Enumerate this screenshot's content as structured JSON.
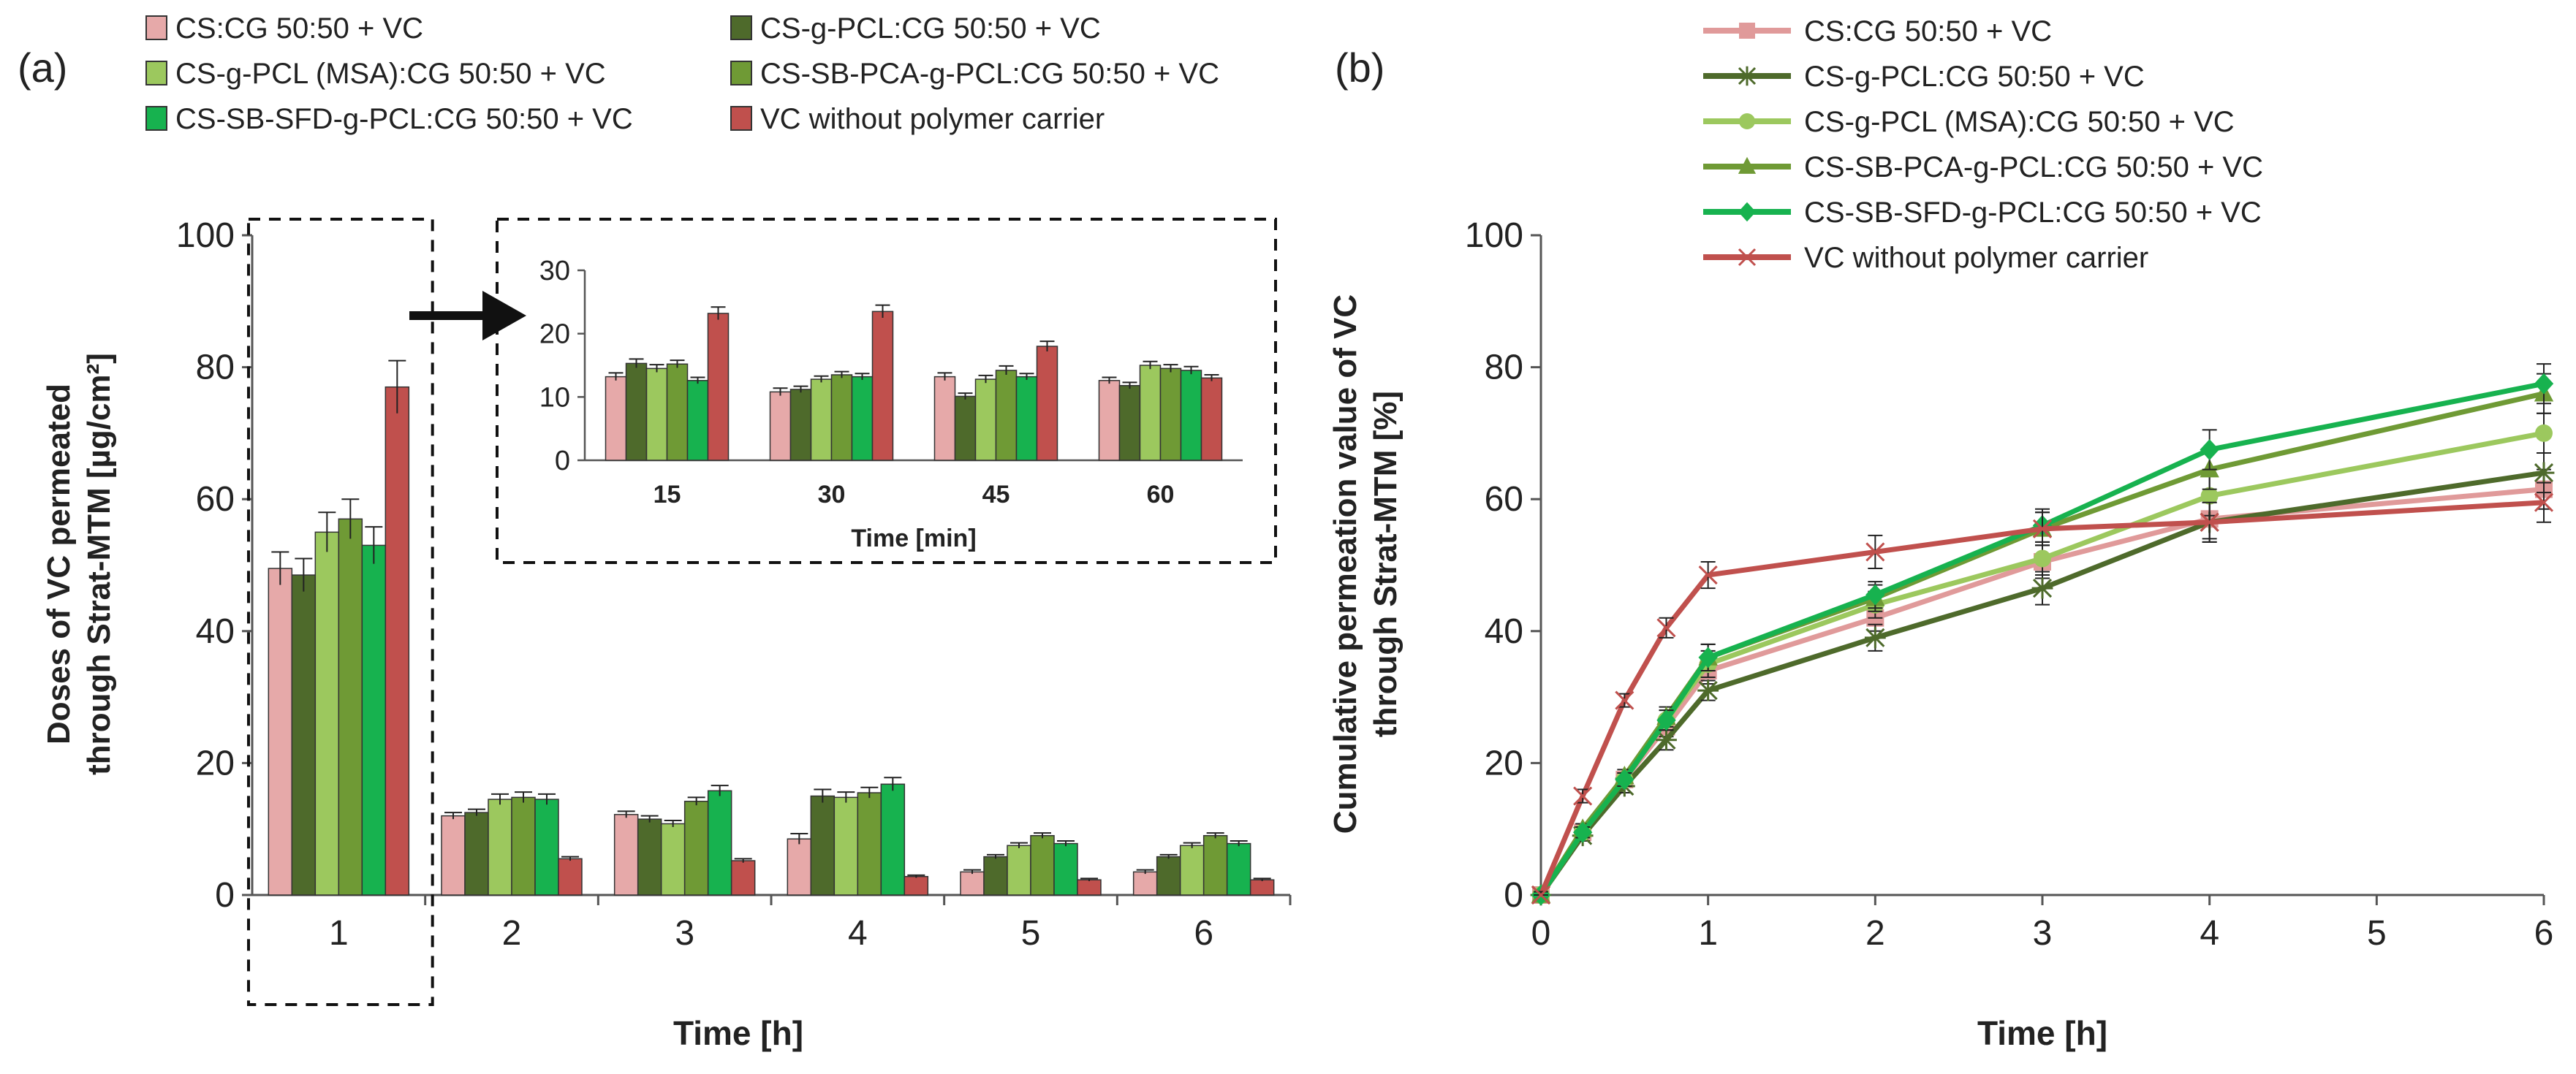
{
  "panel_labels": {
    "a": "(a)",
    "b": "(b)"
  },
  "colors": [
    "#e6a9a9",
    "#4e6a2b",
    "#9cc85e",
    "#6f9a35",
    "#17b24f",
    "#c0504d"
  ],
  "line_colors": [
    "#e09a9a",
    "#4e6a2b",
    "#9cc85e",
    "#6f9a35",
    "#17b24f",
    "#c0504d"
  ],
  "legend": [
    "CS:CG 50:50 + VC",
    "CS-g-PCL:CG 50:50 + VC",
    "CS-g-PCL (MSA):CG 50:50 + VC",
    "CS-SB-PCA-g-PCL:CG 50:50 + VC",
    "CS-SB-SFD-g-PCL:CG 50:50 + VC",
    "VC without polymer carrier"
  ],
  "chart_data": [
    {
      "id": "a",
      "type": "bar",
      "title": "",
      "xlabel": "Time [h]",
      "ylabel_line1": "Doses of VC permeated",
      "ylabel_line2": "through Strat-MTM [µg/cm²]",
      "ylim": [
        0,
        100
      ],
      "yticks": [
        "0",
        "20",
        "40",
        "60",
        "80",
        "100"
      ],
      "categories": [
        "1",
        "2",
        "3",
        "4",
        "5",
        "6"
      ],
      "legend_position": "top",
      "series": [
        {
          "name": "CS:CG 50:50 + VC",
          "values": [
            49.5,
            12.0,
            12.2,
            8.5,
            3.5,
            3.5
          ],
          "errors": [
            2.5,
            0.5,
            0.5,
            0.8,
            0.3,
            0.3
          ]
        },
        {
          "name": "CS-g-PCL:CG 50:50 + VC",
          "values": [
            48.5,
            12.5,
            11.5,
            15.0,
            5.8,
            5.8
          ],
          "errors": [
            2.5,
            0.5,
            0.5,
            1.0,
            0.3,
            0.3
          ]
        },
        {
          "name": "CS-g-PCL (MSA):CG 50:50 + VC",
          "values": [
            55.0,
            14.5,
            10.8,
            14.8,
            7.5,
            7.5
          ],
          "errors": [
            3.0,
            0.8,
            0.5,
            0.8,
            0.4,
            0.4
          ]
        },
        {
          "name": "CS-SB-PCA-g-PCL:CG 50:50 + VC",
          "values": [
            57.0,
            14.8,
            14.2,
            15.5,
            9.0,
            9.0
          ],
          "errors": [
            3.0,
            0.8,
            0.6,
            0.8,
            0.4,
            0.4
          ]
        },
        {
          "name": "CS-SB-SFD-g-PCL:CG 50:50 + VC",
          "values": [
            53.0,
            14.5,
            15.8,
            16.8,
            7.8,
            7.8
          ],
          "errors": [
            2.8,
            0.8,
            0.8,
            1.0,
            0.4,
            0.4
          ]
        },
        {
          "name": "VC without polymer carrier",
          "values": [
            77.0,
            5.5,
            5.2,
            2.8,
            2.3,
            2.3
          ],
          "errors": [
            4.0,
            0.3,
            0.3,
            0.2,
            0.2,
            0.2
          ]
        }
      ],
      "highlight_category": "1"
    },
    {
      "id": "a-inset",
      "type": "bar",
      "xlabel": "Time [min]",
      "ylim": [
        0,
        30
      ],
      "yticks": [
        "0",
        "10",
        "20",
        "30"
      ],
      "categories": [
        "15",
        "30",
        "45",
        "60"
      ],
      "series": [
        {
          "name": "CS:CG 50:50 + VC",
          "values": [
            13.2,
            10.8,
            13.2,
            12.6
          ],
          "errors": [
            0.6,
            0.6,
            0.6,
            0.5
          ]
        },
        {
          "name": "CS-g-PCL:CG 50:50 + VC",
          "values": [
            15.3,
            11.2,
            10.1,
            11.8
          ],
          "errors": [
            0.7,
            0.5,
            0.5,
            0.5
          ]
        },
        {
          "name": "CS-g-PCL (MSA):CG 50:50 + VC",
          "values": [
            14.5,
            12.8,
            12.8,
            15.0
          ],
          "errors": [
            0.6,
            0.5,
            0.6,
            0.6
          ]
        },
        {
          "name": "CS-SB-PCA-g-PCL:CG 50:50 + VC",
          "values": [
            15.2,
            13.5,
            14.2,
            14.5
          ],
          "errors": [
            0.6,
            0.5,
            0.7,
            0.6
          ]
        },
        {
          "name": "CS-SB-SFD-g-PCL:CG 50:50 + VC",
          "values": [
            12.6,
            13.2,
            13.2,
            14.2
          ],
          "errors": [
            0.5,
            0.5,
            0.5,
            0.6
          ]
        },
        {
          "name": "VC without polymer carrier",
          "values": [
            23.2,
            23.5,
            18.0,
            13.0
          ],
          "errors": [
            1.0,
            1.0,
            0.8,
            0.5
          ]
        }
      ]
    },
    {
      "id": "b",
      "type": "line",
      "xlabel": "Time [h]",
      "ylabel_line1": "Cumulative permeation value of VC",
      "ylabel_line2": "through Strat-MTM  [%]",
      "xlim": [
        0,
        6
      ],
      "ylim": [
        0,
        100
      ],
      "xticks": [
        "0",
        "1",
        "2",
        "3",
        "4",
        "5",
        "6"
      ],
      "yticks": [
        "0",
        "20",
        "40",
        "60",
        "80",
        "100"
      ],
      "x": [
        0,
        0.25,
        0.5,
        0.75,
        1,
        2,
        3,
        4,
        6
      ],
      "legend_position": "top",
      "series": [
        {
          "name": "CS:CG 50:50 + VC",
          "marker": "square",
          "values": [
            0,
            9.5,
            17.5,
            25.5,
            34,
            42,
            50.5,
            57,
            61.5
          ],
          "errors": [
            0.5,
            0.8,
            1,
            1.5,
            2,
            2,
            2.5,
            3,
            3
          ]
        },
        {
          "name": "CS-g-PCL:CG 50:50 + VC",
          "marker": "star",
          "values": [
            0,
            9,
            16.5,
            23.5,
            31,
            39,
            46.5,
            56.5,
            64
          ],
          "errors": [
            0.5,
            0.8,
            1,
            1.5,
            1.5,
            2,
            2.5,
            3,
            3
          ]
        },
        {
          "name": "CS-g-PCL (MSA):CG 50:50 + VC",
          "marker": "circle",
          "values": [
            0,
            9.5,
            17.5,
            26.5,
            35,
            44,
            51,
            60.5,
            70
          ],
          "errors": [
            0.5,
            0.8,
            1,
            1.5,
            2,
            2,
            2.5,
            3,
            3
          ]
        },
        {
          "name": "CS-SB-PCA-g-PCL:CG 50:50 + VC",
          "marker": "triangle",
          "values": [
            0,
            10,
            18,
            27,
            36,
            45,
            55.5,
            64.5,
            76
          ],
          "errors": [
            0.5,
            0.8,
            1,
            1.5,
            2,
            2,
            2.5,
            3,
            3
          ]
        },
        {
          "name": "CS-SB-SFD-g-PCL:CG 50:50 + VC",
          "marker": "diamond",
          "values": [
            0,
            9.5,
            17.5,
            26.5,
            36,
            45.5,
            56,
            67.5,
            77.5
          ],
          "errors": [
            0.5,
            0.8,
            1,
            1.5,
            2,
            2,
            2.5,
            3,
            3
          ]
        },
        {
          "name": "VC without polymer carrier",
          "marker": "x",
          "values": [
            0,
            15,
            29.5,
            40.5,
            48.5,
            52,
            55.5,
            56.5,
            59.5
          ],
          "errors": [
            0.5,
            1,
            1,
            1.5,
            2,
            2.5,
            2.5,
            3,
            3
          ]
        }
      ]
    }
  ]
}
